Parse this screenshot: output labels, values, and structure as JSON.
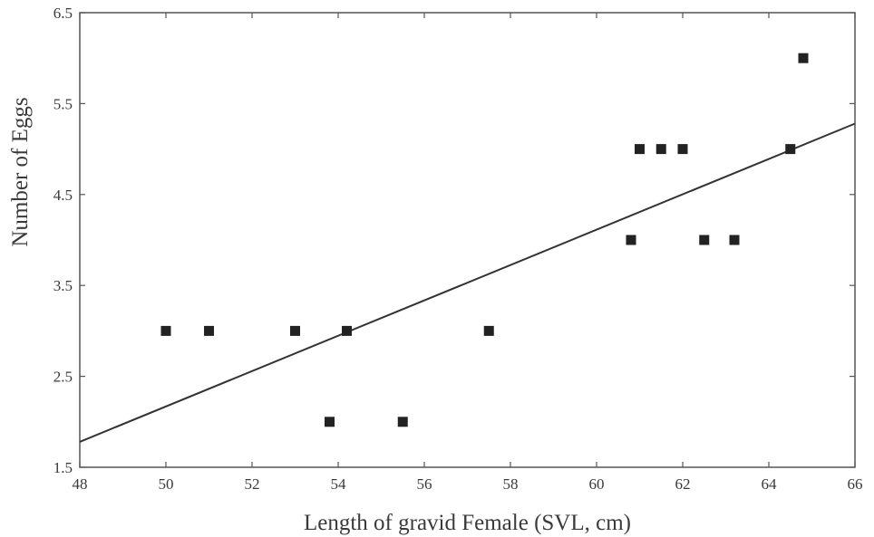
{
  "chart_data": {
    "type": "scatter",
    "title": "",
    "xlabel": "Length of gravid Female (SVL, cm)",
    "ylabel": "Number of Eggs",
    "xlim": [
      48,
      66
    ],
    "ylim": [
      1.5,
      6.5
    ],
    "x_ticks": [
      "48",
      "50",
      "52",
      "54",
      "56",
      "58",
      "60",
      "62",
      "64",
      "66"
    ],
    "y_ticks": [
      "1.5",
      "2.5",
      "3.5",
      "4.5",
      "5.5",
      "6.5"
    ],
    "grid": false,
    "legend": "none",
    "marker": "square",
    "marker_color": "#222222",
    "line_color": "#333333",
    "points": [
      {
        "x": 50.0,
        "y": 3
      },
      {
        "x": 51.0,
        "y": 3
      },
      {
        "x": 53.0,
        "y": 3
      },
      {
        "x": 54.2,
        "y": 3
      },
      {
        "x": 53.8,
        "y": 2
      },
      {
        "x": 55.5,
        "y": 2
      },
      {
        "x": 57.5,
        "y": 3
      },
      {
        "x": 60.8,
        "y": 4
      },
      {
        "x": 61.0,
        "y": 5
      },
      {
        "x": 61.5,
        "y": 5
      },
      {
        "x": 62.0,
        "y": 5
      },
      {
        "x": 62.5,
        "y": 4
      },
      {
        "x": 63.2,
        "y": 4
      },
      {
        "x": 64.5,
        "y": 5
      },
      {
        "x": 64.8,
        "y": 6
      }
    ],
    "trendline": {
      "x": [
        48,
        66
      ],
      "y": [
        1.78,
        5.28
      ]
    }
  }
}
